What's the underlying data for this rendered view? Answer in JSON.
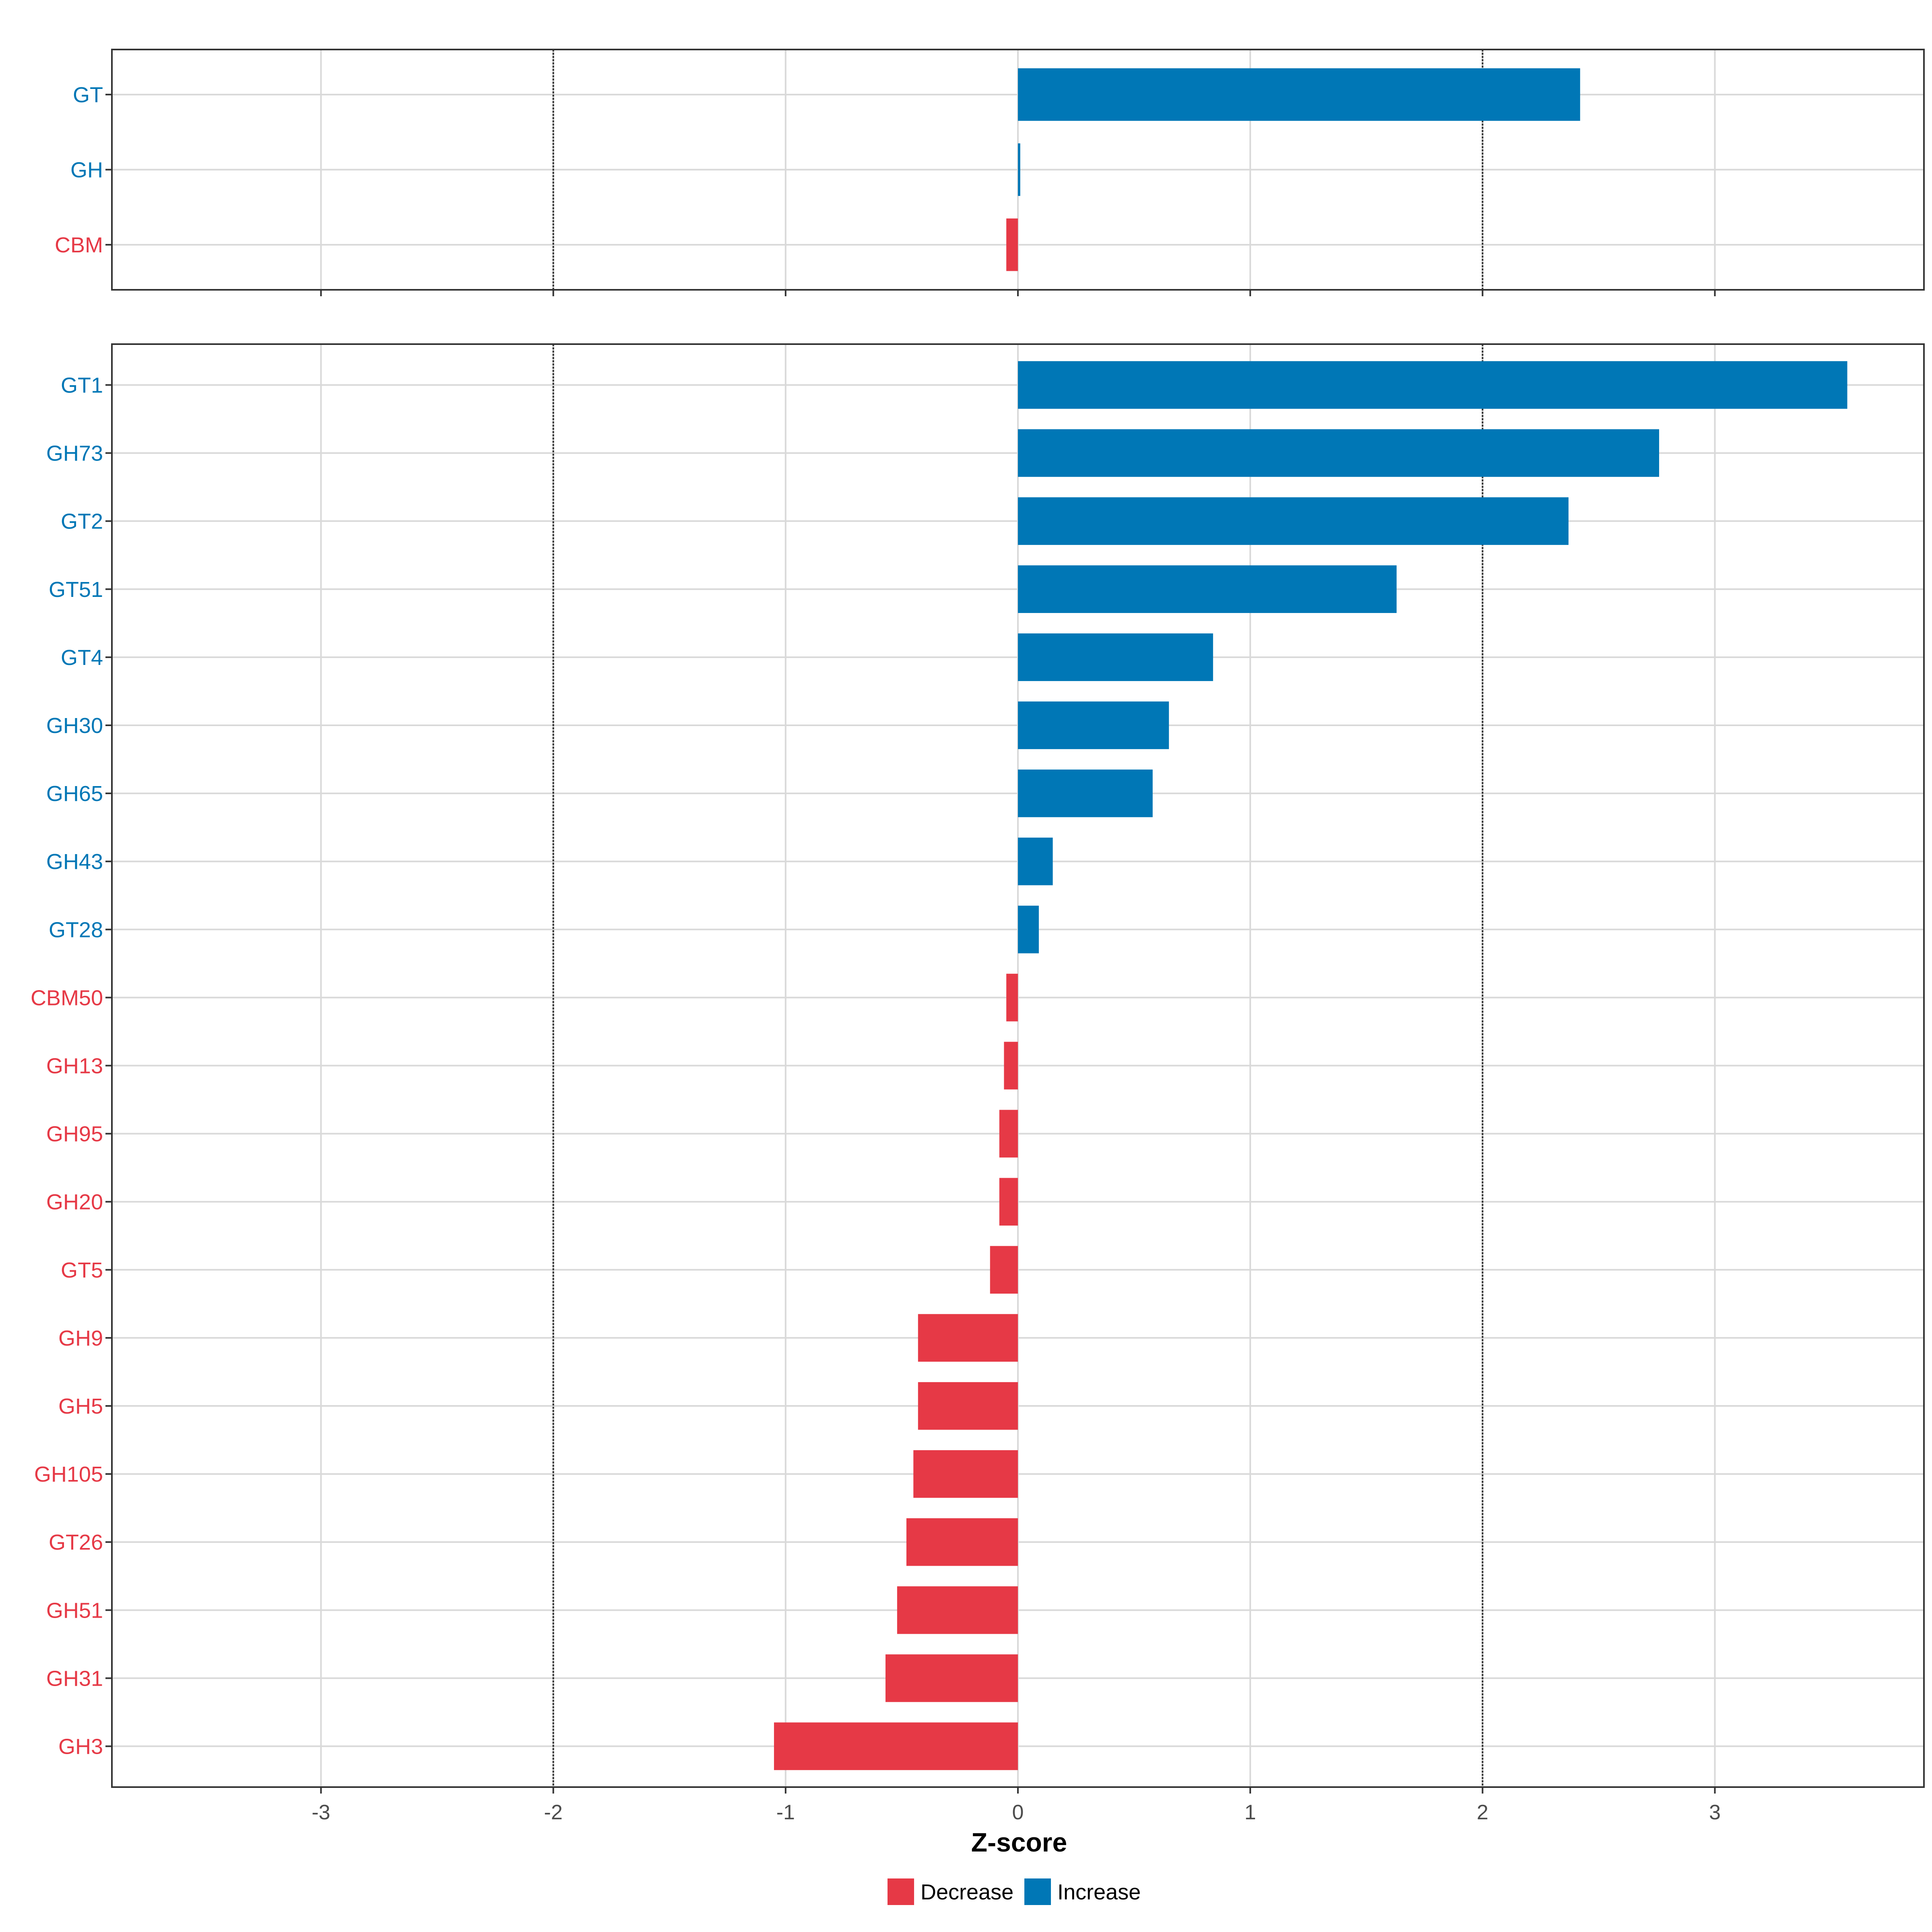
{
  "chart_data": [
    {
      "type": "bar",
      "orientation": "horizontal",
      "panel": "category-level",
      "categories": [
        "GT",
        "GH",
        "CBM"
      ],
      "values": [
        2.42,
        0.01,
        -0.05
      ],
      "directions": [
        "Increase",
        "Increase",
        "Decrease"
      ],
      "xlim": [
        -3.9,
        3.9
      ],
      "xticks": [
        -3,
        -2,
        -1,
        0,
        1,
        2,
        3
      ],
      "reference_lines": [
        -2,
        2
      ],
      "show_tick_labels": false
    },
    {
      "type": "bar",
      "orientation": "horizontal",
      "panel": "family-level",
      "categories": [
        "GT1",
        "GH73",
        "GT2",
        "GT51",
        "GT4",
        "GH30",
        "GH65",
        "GH43",
        "GT28",
        "CBM50",
        "GH13",
        "GH95",
        "GH20",
        "GT5",
        "GH9",
        "GH5",
        "GH105",
        "GT26",
        "GH51",
        "GH31",
        "GH3"
      ],
      "values": [
        3.57,
        2.76,
        2.37,
        1.63,
        0.84,
        0.65,
        0.58,
        0.15,
        0.09,
        -0.05,
        -0.06,
        -0.08,
        -0.08,
        -0.12,
        -0.43,
        -0.43,
        -0.45,
        -0.48,
        -0.52,
        -0.57,
        -1.05
      ],
      "directions": [
        "Increase",
        "Increase",
        "Increase",
        "Increase",
        "Increase",
        "Increase",
        "Increase",
        "Increase",
        "Increase",
        "Decrease",
        "Decrease",
        "Decrease",
        "Decrease",
        "Decrease",
        "Decrease",
        "Decrease",
        "Decrease",
        "Decrease",
        "Decrease",
        "Decrease",
        "Decrease"
      ],
      "xlim": [
        -3.9,
        3.9
      ],
      "xticks": [
        -3,
        -2,
        -1,
        0,
        1,
        2,
        3
      ],
      "reference_lines": [
        -2,
        2
      ],
      "show_tick_labels": true
    }
  ],
  "xticks_labels": [
    "-3",
    "-2",
    "-1",
    "0",
    "1",
    "2",
    "3"
  ],
  "xlabel": "Z-score",
  "legend": {
    "position": "bottom",
    "items": [
      {
        "label": "Decrease",
        "color": "#E63946"
      },
      {
        "label": "Increase",
        "color": "#0077B6"
      }
    ]
  },
  "colors": {
    "Decrease": "#E63946",
    "Increase": "#0077B6",
    "grid": "#d9d9d9",
    "reference_line": "#333333"
  }
}
